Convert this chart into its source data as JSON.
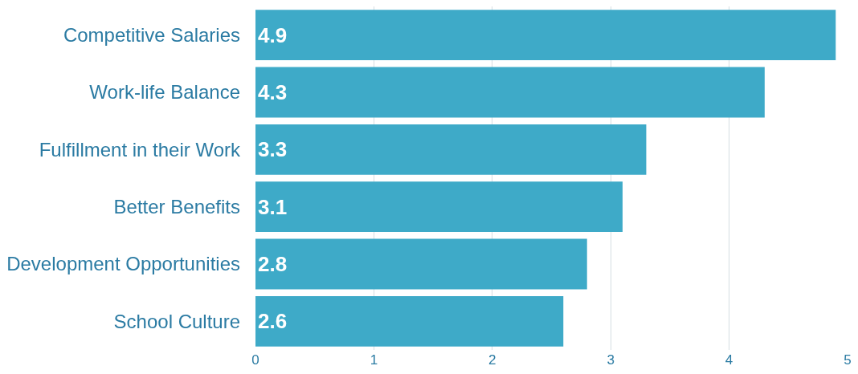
{
  "chart_data": {
    "type": "bar",
    "orientation": "horizontal",
    "categories": [
      "Competitive Salaries",
      "Work-life Balance",
      "Fulfillment in their Work",
      "Better Benefits",
      "Development Opportunities",
      "School Culture"
    ],
    "values": [
      4.9,
      4.3,
      3.3,
      3.1,
      2.8,
      2.6
    ],
    "color": "#3eaac8",
    "xlim": [
      0,
      5
    ],
    "xticks": [
      0,
      1,
      2,
      3,
      4,
      5
    ],
    "grid": "x",
    "data_labels": true
  }
}
